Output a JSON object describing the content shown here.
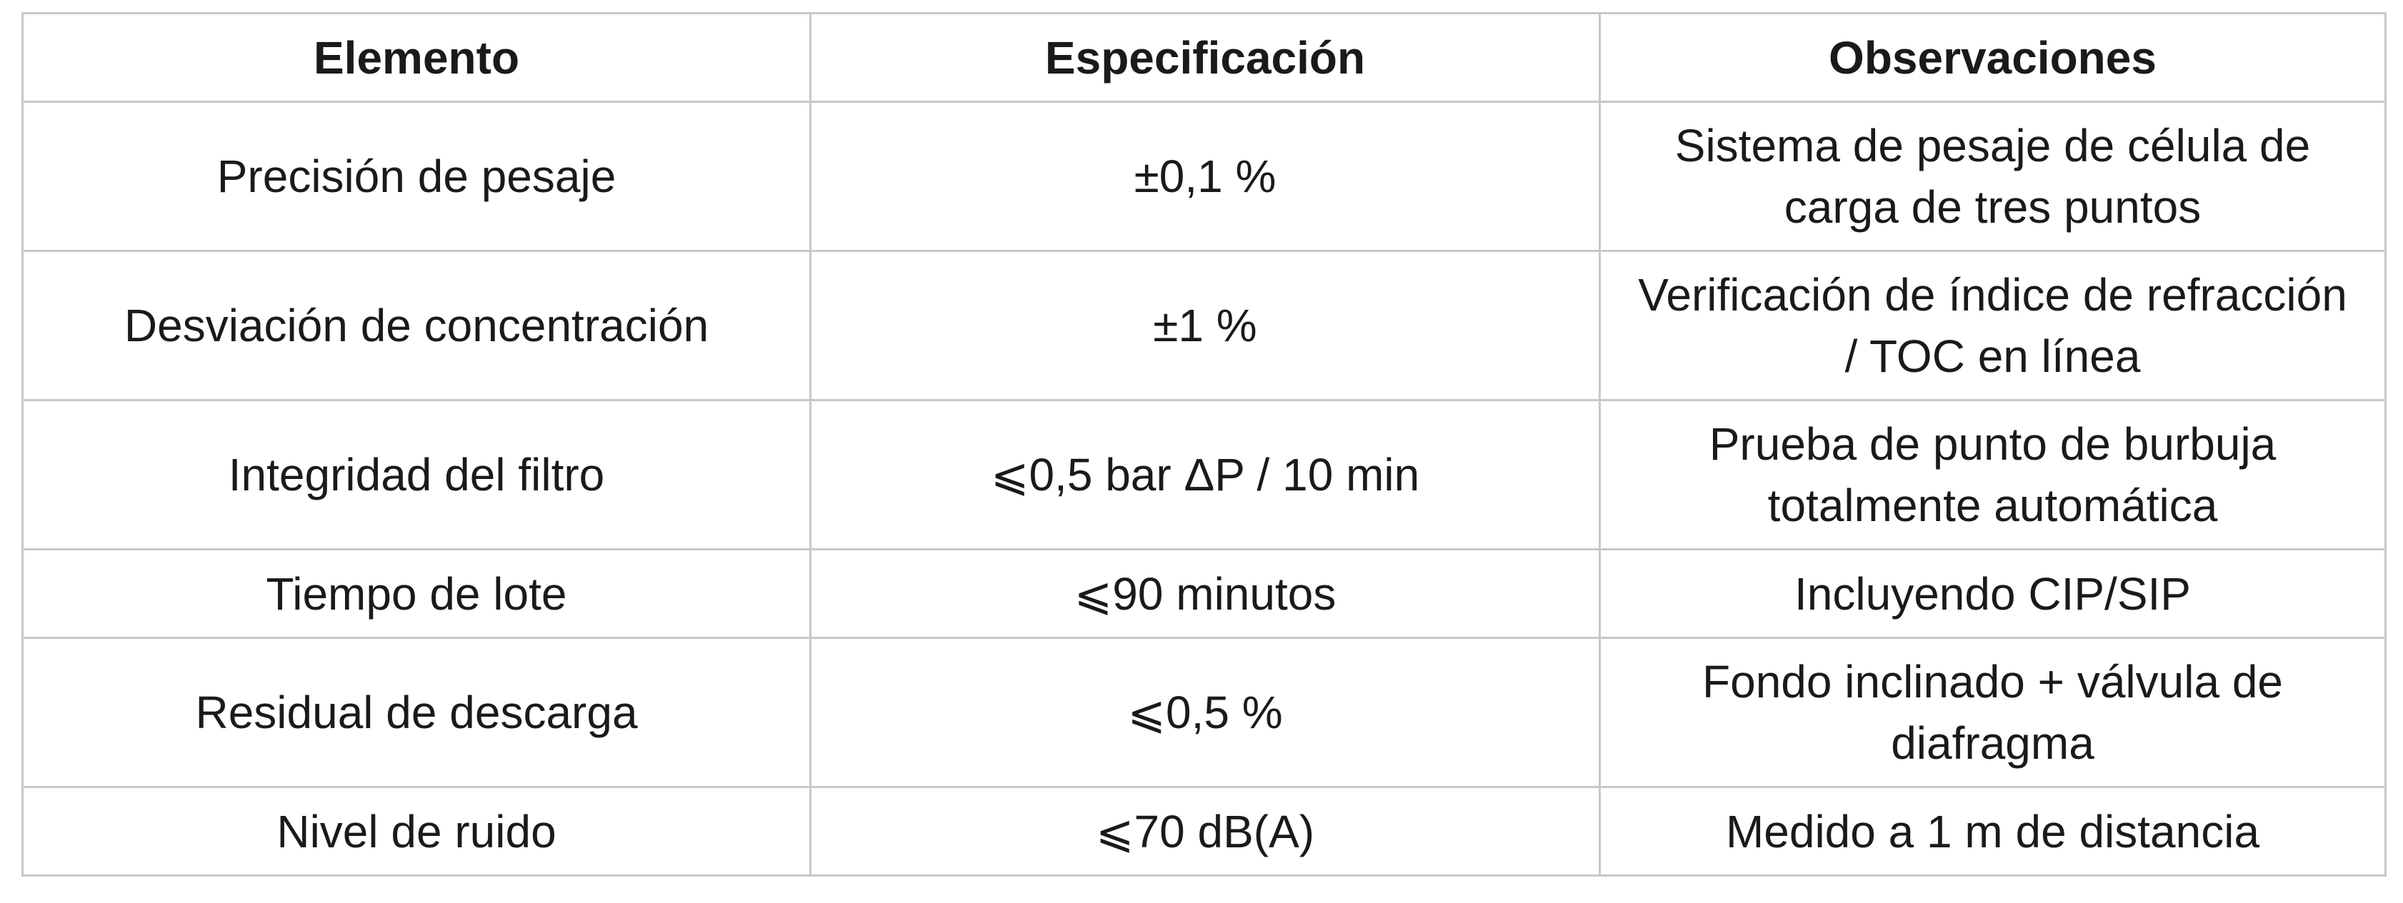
{
  "table": {
    "header": [
      "Elemento",
      "Especificación",
      "Observaciones"
    ],
    "rows": [
      [
        "Precisión de pesaje",
        "±0,1 %",
        "Sistema de pesaje de célula de carga de tres puntos"
      ],
      [
        "Desviación de concentración",
        "±1 %",
        "Verificación de índice de refracción / TOC en línea"
      ],
      [
        "Integridad del filtro",
        "⩽0,5 bar ΔP / 10 min",
        "Prueba de punto de burbuja totalmente automática"
      ],
      [
        "Tiempo de lote",
        "⩽90 minutos",
        "Incluyendo CIP/SIP"
      ],
      [
        "Residual de descarga",
        "⩽0,5 %",
        "Fondo inclinado + válvula de diafragma"
      ],
      [
        "Nivel de ruido",
        "⩽70 dB(A)",
        "Medido a 1 m de distancia"
      ]
    ]
  }
}
